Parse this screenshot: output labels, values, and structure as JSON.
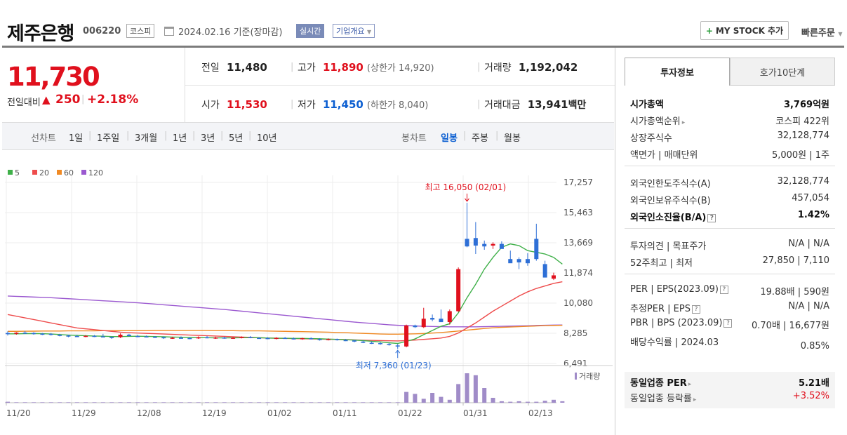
{
  "header": {
    "name": "제주은행",
    "code": "006220",
    "market": "코스피",
    "date": "2024.02.16 기준(장마감)",
    "realtime_label": "실시간",
    "overview_label": "기업개요",
    "mystock_label": "MY STOCK 추가",
    "quickorder_label": "빠른주문"
  },
  "price": {
    "current": "11,730",
    "change_label": "전일대비",
    "change_value": "250",
    "change_pct": "+2.18%"
  },
  "stats": {
    "prev_label": "전일",
    "prev_value": "11,480",
    "open_label": "시가",
    "open_value": "11,530",
    "high_label": "고가",
    "high_value": "11,890",
    "upper_limit": "(상한가 14,920)",
    "low_label": "저가",
    "low_value": "11,450",
    "lower_limit": "(하한가 8,040)",
    "volume_label": "거래량",
    "volume_value": "1,192,042",
    "amount_label": "거래대금",
    "amount_value": "13,941",
    "amount_unit": "백만"
  },
  "periods": {
    "line_label": "선차트",
    "line": [
      "1일",
      "1주일",
      "3개월",
      "1년",
      "3년",
      "5년",
      "10년"
    ],
    "candle_label": "봉차트",
    "candle": [
      "일봉",
      "주봉",
      "월봉"
    ],
    "candle_active": "일봉"
  },
  "chart_data": {
    "type": "candlestick",
    "legend": [
      "5",
      "20",
      "60",
      "120"
    ],
    "legend_colors": [
      "#3fb049",
      "#ee4c4c",
      "#f08a24",
      "#9b59d0"
    ],
    "y_ticks": [
      "17,257",
      "15,463",
      "13,669",
      "11,874",
      "10,080",
      "8,285",
      "6,491"
    ],
    "x_ticks": [
      "11/20",
      "11/29",
      "12/08",
      "12/19",
      "01/02",
      "01/11",
      "01/22",
      "01/31",
      "02/13"
    ],
    "high_annotation": "최고 16,050 (02/01)",
    "low_annotation": "최저 7,360 (01/23)",
    "volume_label": "거래량",
    "ylim": [
      6491,
      17257
    ],
    "candles": [
      {
        "o": 8300,
        "h": 8400,
        "l": 8150,
        "c": 8230
      },
      {
        "o": 8250,
        "h": 8350,
        "l": 8200,
        "c": 8320
      },
      {
        "o": 8320,
        "h": 8420,
        "l": 8250,
        "c": 8300
      },
      {
        "o": 8300,
        "h": 8350,
        "l": 8200,
        "c": 8260
      },
      {
        "o": 8260,
        "h": 8300,
        "l": 8180,
        "c": 8250
      },
      {
        "o": 8250,
        "h": 8300,
        "l": 8150,
        "c": 8190
      },
      {
        "o": 8190,
        "h": 8250,
        "l": 8100,
        "c": 8150
      },
      {
        "o": 8150,
        "h": 8200,
        "l": 8050,
        "c": 8120
      },
      {
        "o": 8120,
        "h": 8200,
        "l": 8080,
        "c": 8100
      },
      {
        "o": 8100,
        "h": 8180,
        "l": 8050,
        "c": 8130
      },
      {
        "o": 8130,
        "h": 8180,
        "l": 8060,
        "c": 8100
      },
      {
        "o": 8100,
        "h": 8250,
        "l": 8050,
        "c": 8070
      },
      {
        "o": 8060,
        "h": 8100,
        "l": 7950,
        "c": 8050
      },
      {
        "o": 8050,
        "h": 8280,
        "l": 8000,
        "c": 8200
      },
      {
        "o": 8200,
        "h": 8250,
        "l": 8100,
        "c": 8120
      },
      {
        "o": 8120,
        "h": 8180,
        "l": 8050,
        "c": 8100
      },
      {
        "o": 8100,
        "h": 8150,
        "l": 8050,
        "c": 8080
      },
      {
        "o": 8080,
        "h": 8120,
        "l": 8000,
        "c": 8050
      },
      {
        "o": 8050,
        "h": 8100,
        "l": 7950,
        "c": 8000
      },
      {
        "o": 8000,
        "h": 8080,
        "l": 7950,
        "c": 8020
      },
      {
        "o": 8020,
        "h": 8100,
        "l": 7980,
        "c": 8000
      },
      {
        "o": 8000,
        "h": 8050,
        "l": 7930,
        "c": 7980
      },
      {
        "o": 7980,
        "h": 8100,
        "l": 7950,
        "c": 8050
      },
      {
        "o": 8050,
        "h": 8120,
        "l": 7980,
        "c": 8000
      },
      {
        "o": 8000,
        "h": 8080,
        "l": 7950,
        "c": 8030
      },
      {
        "o": 8030,
        "h": 8080,
        "l": 7960,
        "c": 7990
      },
      {
        "o": 7990,
        "h": 8060,
        "l": 7950,
        "c": 8020
      },
      {
        "o": 8020,
        "h": 8100,
        "l": 7980,
        "c": 8060
      },
      {
        "o": 8060,
        "h": 8120,
        "l": 7990,
        "c": 8010
      },
      {
        "o": 8010,
        "h": 8050,
        "l": 7950,
        "c": 8000
      },
      {
        "o": 8000,
        "h": 8050,
        "l": 7930,
        "c": 7970
      },
      {
        "o": 7970,
        "h": 8050,
        "l": 7920,
        "c": 8010
      },
      {
        "o": 8010,
        "h": 8060,
        "l": 7950,
        "c": 7980
      },
      {
        "o": 7980,
        "h": 8030,
        "l": 7920,
        "c": 7950
      },
      {
        "o": 7950,
        "h": 8020,
        "l": 7900,
        "c": 7990
      },
      {
        "o": 7990,
        "h": 8040,
        "l": 7920,
        "c": 7940
      },
      {
        "o": 7940,
        "h": 7990,
        "l": 7850,
        "c": 7900
      },
      {
        "o": 7900,
        "h": 7980,
        "l": 7860,
        "c": 7940
      },
      {
        "o": 7940,
        "h": 7970,
        "l": 7850,
        "c": 7880
      },
      {
        "o": 7880,
        "h": 7950,
        "l": 7820,
        "c": 7860
      },
      {
        "o": 7860,
        "h": 7900,
        "l": 7750,
        "c": 7790
      },
      {
        "o": 7790,
        "h": 7850,
        "l": 7700,
        "c": 7720
      },
      {
        "o": 7720,
        "h": 7800,
        "l": 7650,
        "c": 7700
      },
      {
        "o": 7700,
        "h": 7750,
        "l": 7600,
        "c": 7640
      },
      {
        "o": 7640,
        "h": 7700,
        "l": 7550,
        "c": 7580
      },
      {
        "o": 7560,
        "h": 7650,
        "l": 7360,
        "c": 7500
      },
      {
        "o": 7500,
        "h": 8800,
        "l": 7450,
        "c": 8750
      },
      {
        "o": 8750,
        "h": 8800,
        "l": 8600,
        "c": 8650
      },
      {
        "o": 8650,
        "h": 9800,
        "l": 8600,
        "c": 9150
      },
      {
        "o": 9200,
        "h": 9400,
        "l": 9000,
        "c": 9100
      },
      {
        "o": 9150,
        "h": 9700,
        "l": 9050,
        "c": 8950
      },
      {
        "o": 8950,
        "h": 9700,
        "l": 8800,
        "c": 9600
      },
      {
        "o": 9600,
        "h": 12200,
        "l": 9550,
        "c": 12100
      },
      {
        "o": 13900,
        "h": 16050,
        "l": 13400,
        "c": 13450
      },
      {
        "o": 13950,
        "h": 14900,
        "l": 13000,
        "c": 13500
      },
      {
        "o": 13600,
        "h": 13800,
        "l": 13250,
        "c": 13450
      },
      {
        "o": 13500,
        "h": 13700,
        "l": 13300,
        "c": 13600
      },
      {
        "o": 13600,
        "h": 13750,
        "l": 13350,
        "c": 13300
      },
      {
        "o": 12700,
        "h": 13200,
        "l": 12500,
        "c": 12450
      },
      {
        "o": 12700,
        "h": 12800,
        "l": 12100,
        "c": 12500
      },
      {
        "o": 12700,
        "h": 13050,
        "l": 12300,
        "c": 12450
      },
      {
        "o": 13900,
        "h": 14800,
        "l": 12600,
        "c": 12700
      },
      {
        "o": 12400,
        "h": 12600,
        "l": 11600,
        "c": 11600
      },
      {
        "o": 11530,
        "h": 11890,
        "l": 11450,
        "c": 11730
      }
    ],
    "ma": {
      "5": [
        8250,
        8250,
        8260,
        8270,
        8260,
        8240,
        8210,
        8180,
        8160,
        8140,
        8120,
        8110,
        8090,
        8090,
        8100,
        8110,
        8100,
        8090,
        8080,
        8060,
        8050,
        8030,
        8020,
        8020,
        8010,
        8010,
        8010,
        8020,
        8020,
        8020,
        8000,
        7990,
        7990,
        7980,
        7980,
        7970,
        7960,
        7940,
        7920,
        7900,
        7880,
        7850,
        7810,
        7770,
        7720,
        7680,
        7800,
        7950,
        8200,
        8450,
        8700,
        8850,
        9500,
        10400,
        11200,
        12100,
        12800,
        13400,
        13600,
        13500,
        13200,
        13100,
        13000,
        12800,
        12400
      ],
      "20": [
        9400,
        9300,
        9200,
        9100,
        9000,
        8900,
        8800,
        8700,
        8600,
        8550,
        8500,
        8450,
        8400,
        8350,
        8320,
        8300,
        8280,
        8260,
        8240,
        8220,
        8200,
        8180,
        8160,
        8140,
        8120,
        8100,
        8080,
        8060,
        8040,
        8020,
        8000,
        7990,
        7980,
        7970,
        7960,
        7950,
        7940,
        7930,
        7920,
        7910,
        7890,
        7870,
        7860,
        7850,
        7840,
        7830,
        7850,
        7880,
        7920,
        7960,
        8000,
        8100,
        8300,
        8600,
        8900,
        9250,
        9600,
        9900,
        10200,
        10500,
        10750,
        10950,
        11100,
        11250,
        11350
      ],
      "60": [
        8400,
        8400,
        8410,
        8410,
        8420,
        8420,
        8420,
        8430,
        8430,
        8430,
        8430,
        8440,
        8440,
        8440,
        8440,
        8440,
        8440,
        8450,
        8450,
        8450,
        8450,
        8450,
        8450,
        8450,
        8440,
        8440,
        8440,
        8430,
        8430,
        8430,
        8420,
        8410,
        8400,
        8390,
        8380,
        8370,
        8360,
        8350,
        8330,
        8320,
        8300,
        8280,
        8260,
        8240,
        8230,
        8230,
        8240,
        8250,
        8270,
        8300,
        8330,
        8370,
        8420,
        8470,
        8520,
        8570,
        8610,
        8640,
        8660,
        8680,
        8700,
        8720,
        8740,
        8750,
        8760
      ],
      "120": [
        10500,
        10480,
        10460,
        10440,
        10420,
        10400,
        10370,
        10340,
        10310,
        10280,
        10250,
        10220,
        10190,
        10160,
        10130,
        10100,
        10060,
        10020,
        9980,
        9940,
        9900,
        9860,
        9820,
        9780,
        9740,
        9700,
        9650,
        9600,
        9550,
        9500,
        9450,
        9400,
        9350,
        9300,
        9250,
        9200,
        9150,
        9100,
        9050,
        9000,
        8950,
        8910,
        8870,
        8830,
        8790,
        8760,
        8740,
        8720,
        8700,
        8690,
        8680,
        8670,
        8670,
        8670,
        8670,
        8680,
        8690,
        8700,
        8710,
        8720,
        8730,
        8750,
        8760,
        8770,
        8780
      ]
    },
    "volume": [
      2,
      1,
      1,
      1,
      1,
      1,
      1,
      1,
      1,
      1,
      1,
      1,
      1,
      1,
      1,
      1,
      1,
      1,
      1,
      1,
      1,
      1,
      1,
      1,
      1,
      1,
      1,
      1,
      1,
      1,
      1,
      1,
      1,
      1,
      1,
      1,
      1,
      1,
      1,
      1,
      1,
      1,
      1,
      1,
      1,
      1,
      22,
      18,
      8,
      20,
      12,
      6,
      38,
      60,
      56,
      30,
      10,
      3,
      2,
      3,
      2,
      2,
      4,
      6,
      3
    ]
  },
  "right_panel": {
    "tabs": [
      "투자정보",
      "호가10단계"
    ],
    "market_cap_label": "시가총액",
    "market_cap_value": "3,769억원",
    "market_cap_rank_label": "시가총액순위",
    "market_cap_rank_value": "코스피 422위",
    "shares_label": "상장주식수",
    "shares_value": "32,128,774",
    "par_label": "액면가 | 매매단위",
    "par_value": "5,000원 | 1주",
    "foreign_limit_label": "외국인한도주식수(A)",
    "foreign_limit_value": "32,128,774",
    "foreign_hold_label": "외국인보유주식수(B)",
    "foreign_hold_value": "457,054",
    "foreign_ratio_label": "외국인소진율(B/A)",
    "foreign_ratio_value": "1.42%",
    "opinion_label": "투자의견 | 목표주가",
    "opinion_value": "N/A | N/A",
    "week52_label": "52주최고 | 최저",
    "week52_value": "27,850 | 7,110",
    "per_label": "PER | EPS(2023.09)",
    "per_value": "19.88배 | 590원",
    "est_per_label": "추정PER | EPS",
    "est_per_value": "N/A | N/A",
    "pbr_label": "PBR | BPS (2023.09)",
    "pbr_value": "0.70배 | 16,677원",
    "div_label": "배당수익률 | 2024.03",
    "div_value": "0.85%",
    "sector_per_label": "동일업종 PER",
    "sector_per_value": "5.21배",
    "sector_chg_label": "동일업종 등락률",
    "sector_chg_value": "+3.52%"
  }
}
